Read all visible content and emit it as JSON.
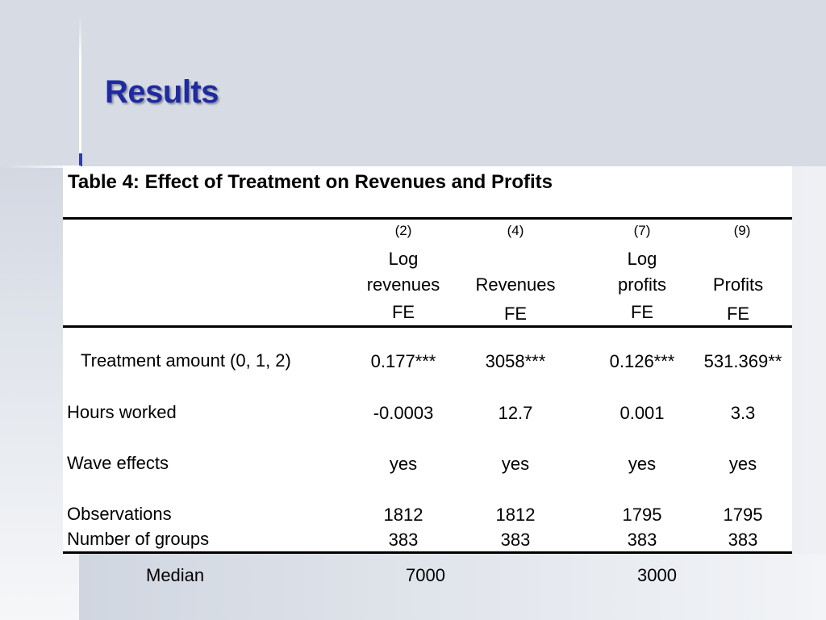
{
  "slide": {
    "title": "Results"
  },
  "table": {
    "caption": "Table 4: Effect of Treatment on Revenues and Profits",
    "columns": [
      {
        "number": "(2)",
        "line1": "Log",
        "line2": "revenues",
        "line3": "FE"
      },
      {
        "number": "(4)",
        "line1": "",
        "line2": "Revenues",
        "line3": "FE"
      },
      {
        "number": "(7)",
        "line1": "Log",
        "line2": "profits",
        "line3": "FE"
      },
      {
        "number": "(9)",
        "line1": "",
        "line2": "Profits",
        "line3": "FE"
      }
    ],
    "rows": [
      {
        "label": "Treatment amount (0, 1, 2)",
        "values": [
          "0.177***",
          "3058***",
          "0.126***",
          "531.369**"
        ]
      },
      {
        "label": "Hours worked",
        "values": [
          "-0.0003",
          "12.7",
          "0.001",
          "3.3"
        ]
      },
      {
        "label": "Wave effects",
        "values": [
          "yes",
          "yes",
          "yes",
          "yes"
        ]
      },
      {
        "label": "Observations",
        "values": [
          "1812",
          "1812",
          "1795",
          "1795"
        ]
      },
      {
        "label": "Number of groups",
        "values": [
          "383",
          "383",
          "383",
          "383"
        ]
      }
    ]
  },
  "median": {
    "label": "Median",
    "revenues": "7000",
    "profits": "3000"
  }
}
